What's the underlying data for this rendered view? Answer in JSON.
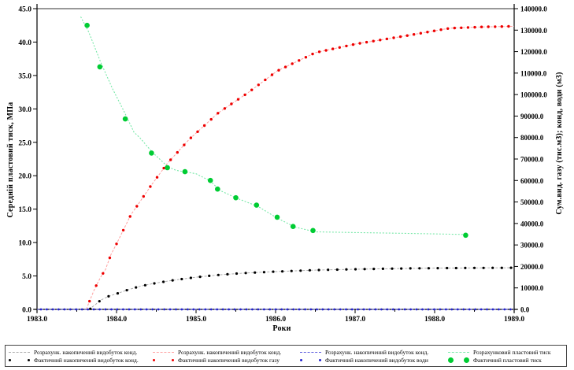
{
  "chart_data": {
    "type": "line",
    "xlabel": "Роки",
    "ylabel_left": "Середній пластовий тиск, МПа",
    "ylabel_right": "Сум.вид. газу (тис.м3); конд, води (м3)",
    "x_range": [
      1983.0,
      1989.0
    ],
    "x_tick_step": 1.0,
    "x_minor_tick_step": 0.5,
    "y_left_range": [
      0.0,
      45.0
    ],
    "y_left_tick_step": 5.0,
    "y_right_range": [
      0.0,
      140000.0
    ],
    "y_right_tick_step": 10000.0,
    "grid": false,
    "legend_position": "bottom-box",
    "frame_top_color": "#8a8a8a",
    "axis_color": "#000000",
    "series": [
      {
        "name": "Розрахунк. накопичений видобуток конд.",
        "axis": "right",
        "style": "line",
        "color": "#a8a8a8",
        "dash": "3 2",
        "width": 0.9,
        "points": [
          [
            1983.65,
            0
          ],
          [
            1983.73,
            2100
          ],
          [
            1983.8,
            4300
          ],
          [
            1983.9,
            6100
          ],
          [
            1984.0,
            7300
          ],
          [
            1984.15,
            9200
          ],
          [
            1984.3,
            10800
          ],
          [
            1984.5,
            12300
          ],
          [
            1984.7,
            13500
          ],
          [
            1985.0,
            15000
          ],
          [
            1985.3,
            16100
          ],
          [
            1985.6,
            16900
          ],
          [
            1986.0,
            17600
          ],
          [
            1986.5,
            18300
          ],
          [
            1987.0,
            18700
          ],
          [
            1987.5,
            19000
          ],
          [
            1988.0,
            19200
          ],
          [
            1988.5,
            19300
          ],
          [
            1989.0,
            19400
          ]
        ]
      },
      {
        "name": "Розрахунк. накопичений видобуток конд.",
        "axis": "right",
        "style": "line",
        "color": "#ff9e9e",
        "dash": "3 2",
        "width": 1,
        "points": [
          [
            1983.62,
            0
          ],
          [
            1983.66,
            3800
          ],
          [
            1983.73,
            10000
          ],
          [
            1983.8,
            15000
          ],
          [
            1983.86,
            18500
          ],
          [
            1983.93,
            25500
          ],
          [
            1984.0,
            30500
          ],
          [
            1984.18,
            44000
          ],
          [
            1984.45,
            58500
          ],
          [
            1984.64,
            68000
          ],
          [
            1984.91,
            79000
          ],
          [
            1985.28,
            91500
          ],
          [
            1985.65,
            100800
          ],
          [
            1986.02,
            111000
          ],
          [
            1986.5,
            119500
          ],
          [
            1987.0,
            123500
          ],
          [
            1987.58,
            127000
          ],
          [
            1988.19,
            130900
          ],
          [
            1988.6,
            131500
          ],
          [
            1989.0,
            131800
          ]
        ]
      },
      {
        "name": "Розрахунк. накопичений видобуток конд.",
        "axis": "right",
        "style": "line",
        "color": "#5555dd",
        "dash": "3 2",
        "width": 1,
        "points": [
          [
            1983.0,
            0
          ],
          [
            1989.0,
            0
          ]
        ]
      },
      {
        "name": "Розрахунковий пластовий тиск",
        "axis": "left",
        "style": "line",
        "color": "#78e8a8",
        "dash": "2 2",
        "width": 1.1,
        "points": [
          [
            1983.55,
            43.8
          ],
          [
            1983.65,
            41.5
          ],
          [
            1983.8,
            37.0
          ],
          [
            1983.95,
            33.0
          ],
          [
            1984.1,
            29.5
          ],
          [
            1984.22,
            26.5
          ],
          [
            1984.3,
            25.6
          ],
          [
            1984.45,
            23.5
          ],
          [
            1984.65,
            21.3
          ],
          [
            1984.75,
            20.8
          ],
          [
            1985.0,
            20.3
          ],
          [
            1985.18,
            19.2
          ],
          [
            1985.3,
            17.8
          ],
          [
            1985.52,
            16.6
          ],
          [
            1985.78,
            15.4
          ],
          [
            1986.03,
            13.6
          ],
          [
            1986.25,
            12.3
          ],
          [
            1986.5,
            11.6
          ],
          [
            1987.0,
            11.5
          ],
          [
            1987.5,
            11.4
          ],
          [
            1988.0,
            11.3
          ],
          [
            1988.39,
            11.2
          ]
        ]
      },
      {
        "name": "Фактичний накопичений видобуток конд.",
        "axis": "right",
        "style": "dots",
        "color": "#000000",
        "dot_r": 1.6,
        "dot_step": 0.115,
        "points": [
          [
            1983.67,
            300
          ],
          [
            1983.73,
            2100
          ],
          [
            1983.8,
            4300
          ],
          [
            1983.9,
            6100
          ],
          [
            1984.0,
            7300
          ],
          [
            1984.15,
            9200
          ],
          [
            1984.3,
            10800
          ],
          [
            1984.5,
            12300
          ],
          [
            1984.7,
            13500
          ],
          [
            1985.0,
            15000
          ],
          [
            1985.3,
            16100
          ],
          [
            1985.6,
            16900
          ],
          [
            1986.0,
            17600
          ],
          [
            1986.5,
            18300
          ],
          [
            1987.0,
            18700
          ],
          [
            1987.5,
            19000
          ],
          [
            1988.0,
            19200
          ],
          [
            1988.5,
            19300
          ],
          [
            1989.0,
            19400
          ]
        ]
      },
      {
        "name": "Фактичний накопичений видобуток газу",
        "axis": "right",
        "style": "dots",
        "color": "#ee0000",
        "dot_r": 1.7,
        "dot_step": 0.085,
        "points": [
          [
            1983.66,
            3800
          ],
          [
            1983.73,
            10000
          ],
          [
            1983.8,
            15000
          ],
          [
            1983.86,
            18500
          ],
          [
            1983.93,
            25500
          ],
          [
            1984.0,
            30500
          ],
          [
            1984.18,
            44000
          ],
          [
            1984.45,
            58500
          ],
          [
            1984.64,
            68000
          ],
          [
            1984.91,
            79000
          ],
          [
            1985.28,
            91500
          ],
          [
            1985.65,
            100800
          ],
          [
            1986.02,
            111000
          ],
          [
            1986.5,
            119500
          ],
          [
            1987.0,
            123500
          ],
          [
            1987.58,
            127000
          ],
          [
            1988.19,
            130900
          ],
          [
            1988.6,
            131500
          ],
          [
            1989.0,
            131800
          ]
        ]
      },
      {
        "name": "Фактичний накопичений видобуток води",
        "axis": "right",
        "style": "dots",
        "color": "#2222cc",
        "dot_r": 1.35,
        "dot_step": 0.0738,
        "points": [
          [
            1983.05,
            0
          ],
          [
            1988.98,
            0
          ]
        ]
      },
      {
        "name": "Фактичний пластовий тиск",
        "axis": "left",
        "style": "big-dots",
        "color": "#00cc33",
        "dot_r": 3.3,
        "points": [
          [
            1983.63,
            42.5
          ],
          [
            1983.79,
            36.3
          ],
          [
            1984.11,
            28.5
          ],
          [
            1984.44,
            23.4
          ],
          [
            1984.64,
            21.2
          ],
          [
            1984.86,
            20.6
          ],
          [
            1985.18,
            19.3
          ],
          [
            1985.27,
            18.0
          ],
          [
            1985.5,
            16.7
          ],
          [
            1985.76,
            15.6
          ],
          [
            1986.02,
            13.8
          ],
          [
            1986.22,
            12.4
          ],
          [
            1986.47,
            11.8
          ],
          [
            1988.39,
            11.1
          ]
        ]
      }
    ]
  }
}
